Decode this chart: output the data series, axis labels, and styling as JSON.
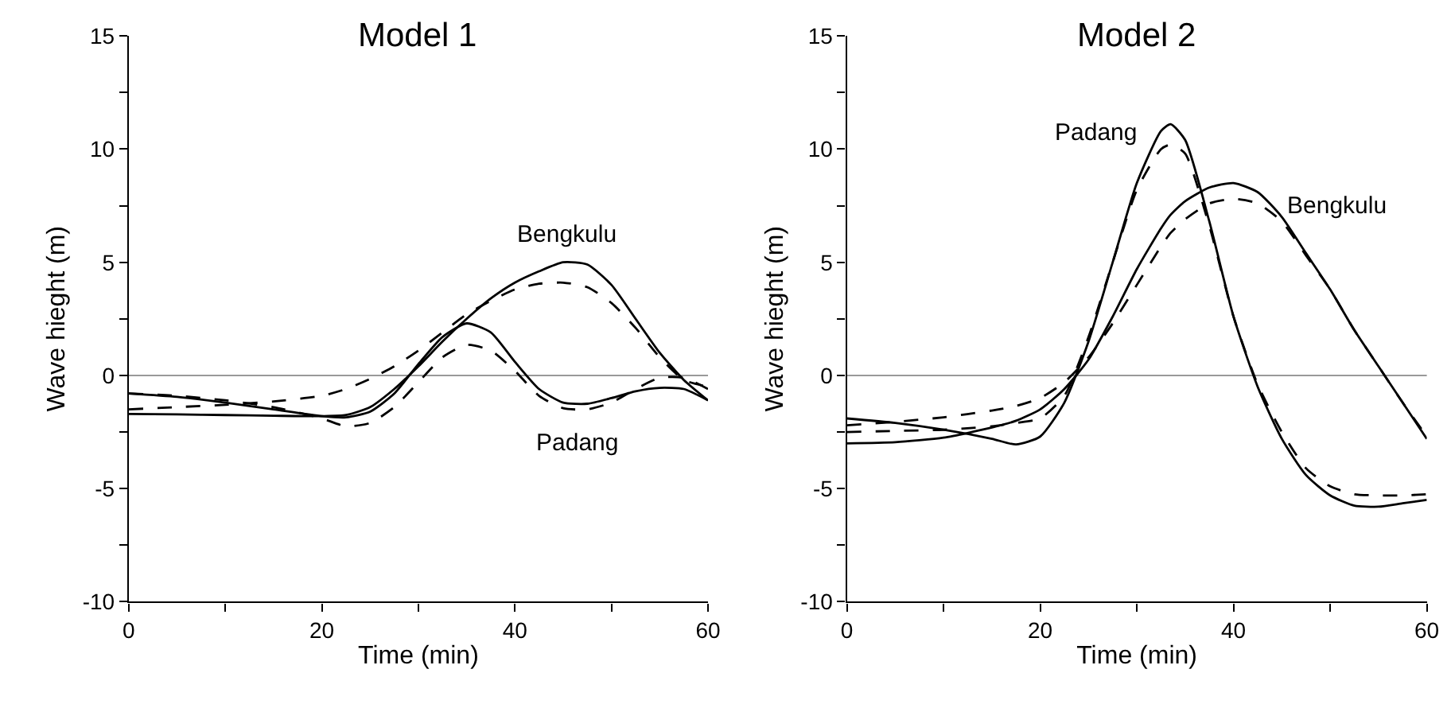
{
  "chart_data": [
    {
      "type": "line",
      "title": "Model 1",
      "xlabel": "Time (min)",
      "ylabel": "Wave hieght (m)",
      "x": [
        0,
        5,
        10,
        15,
        20,
        22.5,
        25,
        27.5,
        30,
        32.5,
        35,
        37.5,
        40,
        42.5,
        45,
        47.5,
        50,
        52.5,
        55,
        57.5,
        60
      ],
      "series": [
        {
          "color": "#000000",
          "line_style": "solid",
          "values": [
            -0.8,
            -0.95,
            -1.2,
            -1.5,
            -1.8,
            -1.85,
            -1.6,
            -0.8,
            0.5,
            1.7,
            2.3,
            1.9,
            0.6,
            -0.6,
            -1.2,
            -1.25,
            -1.0,
            -0.7,
            -0.55,
            -0.6,
            -1.1
          ]
        },
        {
          "color": "#000000",
          "line_style": "solid",
          "values": [
            -1.7,
            -1.72,
            -1.75,
            -1.78,
            -1.8,
            -1.75,
            -1.4,
            -0.6,
            0.4,
            1.5,
            2.5,
            3.4,
            4.1,
            4.6,
            5.0,
            4.9,
            4.0,
            2.5,
            1.0,
            -0.2,
            -1.1
          ]
        },
        {
          "color": "#000000",
          "line_style": "dashed",
          "values": [
            -0.8,
            -0.9,
            -1.1,
            -1.4,
            -1.9,
            -2.25,
            -2.1,
            -1.4,
            -0.3,
            0.8,
            1.35,
            1.1,
            0.2,
            -0.9,
            -1.45,
            -1.5,
            -1.2,
            -0.6,
            -0.1,
            -0.1,
            -0.6
          ]
        },
        {
          "color": "#000000",
          "line_style": "dashed",
          "values": [
            -1.5,
            -1.4,
            -1.3,
            -1.15,
            -0.9,
            -0.6,
            -0.15,
            0.4,
            1.1,
            1.9,
            2.7,
            3.3,
            3.8,
            4.05,
            4.1,
            3.9,
            3.2,
            2.1,
            0.8,
            -0.2,
            -0.5
          ]
        }
      ],
      "ref_lines": [
        {
          "axis": "y",
          "value": 0,
          "color": "#999999"
        }
      ],
      "annotations": [
        "Bengkulu",
        "Padang"
      ],
      "xlim": [
        0,
        60
      ],
      "ylim": [
        -10,
        15
      ],
      "xticks": [
        0,
        {
          "value": 10,
          "label": null
        },
        20,
        {
          "value": 30,
          "label": null
        },
        40,
        {
          "value": 50,
          "label": null
        },
        60
      ],
      "yticks": [
        -10,
        {
          "value": -7.5,
          "label": null
        },
        -5,
        {
          "value": -2.5,
          "label": null
        },
        0,
        {
          "value": 2.5,
          "label": null
        },
        5,
        {
          "value": 7.5,
          "label": null
        },
        10,
        {
          "value": 12.5,
          "label": null
        },
        15
      ],
      "grid": false,
      "marker": "none"
    },
    {
      "type": "line",
      "title": "Model 2",
      "xlabel": "Time (min)",
      "ylabel": "Wave hieght (m)",
      "x": [
        0,
        5,
        10,
        15,
        17.5,
        20,
        22.5,
        25,
        27.5,
        30,
        32.5,
        33.5,
        35,
        37.5,
        40,
        42.5,
        45,
        47.5,
        50,
        52.5,
        55,
        57.5,
        60
      ],
      "series": [
        {
          "color": "#000000",
          "line_style": "solid",
          "values": [
            -1.9,
            -2.1,
            -2.4,
            -2.8,
            -3.05,
            -2.7,
            -1.2,
            1.5,
            5.0,
            8.5,
            10.8,
            11.1,
            10.4,
            6.8,
            2.6,
            -0.5,
            -2.8,
            -4.4,
            -5.3,
            -5.75,
            -5.8,
            -5.65,
            -5.5
          ]
        },
        {
          "color": "#000000",
          "line_style": "solid",
          "values": [
            -3.0,
            -2.95,
            -2.75,
            -2.3,
            -2.0,
            -1.5,
            -0.6,
            0.7,
            2.6,
            4.7,
            6.5,
            7.1,
            7.7,
            8.3,
            8.5,
            8.1,
            7.0,
            5.4,
            3.8,
            2.0,
            0.4,
            -1.2,
            -2.8
          ]
        },
        {
          "color": "#000000",
          "line_style": "dashed",
          "values": [
            -2.5,
            -2.45,
            -2.4,
            -2.25,
            -2.1,
            -1.9,
            -0.9,
            1.7,
            5.0,
            8.2,
            10.0,
            10.2,
            9.8,
            6.6,
            2.6,
            -0.4,
            -2.5,
            -4.1,
            -4.9,
            -5.25,
            -5.3,
            -5.3,
            -5.25
          ]
        },
        {
          "color": "#000000",
          "line_style": "dashed",
          "values": [
            -2.2,
            -2.05,
            -1.85,
            -1.55,
            -1.35,
            -1.0,
            -0.3,
            0.8,
            2.3,
            4.0,
            5.7,
            6.3,
            6.9,
            7.6,
            7.8,
            7.6,
            6.8,
            5.3,
            3.8,
            2.0,
            0.4,
            -1.2,
            -2.7
          ]
        }
      ],
      "ref_lines": [
        {
          "axis": "y",
          "value": 0,
          "color": "#999999"
        }
      ],
      "annotations": [
        "Padang",
        "Bengkulu"
      ],
      "xlim": [
        0,
        60
      ],
      "ylim": [
        -10,
        15
      ],
      "xticks": [
        0,
        {
          "value": 10,
          "label": null
        },
        20,
        {
          "value": 30,
          "label": null
        },
        40,
        {
          "value": 50,
          "label": null
        },
        60
      ],
      "yticks": [
        -10,
        {
          "value": -7.5,
          "label": null
        },
        -5,
        {
          "value": -2.5,
          "label": null
        },
        0,
        {
          "value": 2.5,
          "label": null
        },
        5,
        {
          "value": 7.5,
          "label": null
        },
        10,
        {
          "value": 12.5,
          "label": null
        },
        15
      ],
      "grid": false,
      "marker": "none"
    }
  ]
}
